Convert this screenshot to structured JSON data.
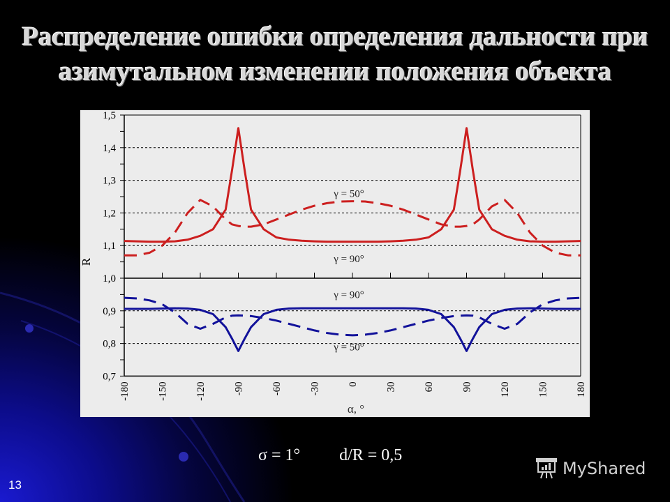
{
  "slide": {
    "title_line1": "Распределение ошибки определения дальности при",
    "title_line2": "азимутальном изменении положения объекта",
    "params": {
      "sigma": "σ = 1°",
      "ratio": "d/R = 0,5"
    },
    "page_number": "13",
    "brand": "MyShared",
    "colors": {
      "upper_series": "#cc1f1f",
      "lower_series": "#12129a",
      "panel_bg": "#ececec"
    }
  },
  "chart_data": {
    "type": "line",
    "title": "",
    "xlabel": "α, °",
    "ylabel": "R",
    "xlim": [
      -180,
      180
    ],
    "ylim": [
      0.7,
      1.5
    ],
    "x_ticks": [
      "-180",
      "-150",
      "-120",
      "-90",
      "-60",
      "-30",
      "0",
      "30",
      "60",
      "90",
      "120",
      "150",
      "180"
    ],
    "y_ticks": [
      "0,7",
      "0,8",
      "0,9",
      "1,0",
      "1,1",
      "1,2",
      "1,3",
      "1,4",
      "1,5"
    ],
    "grid": "horizontal dotted at 0.8, 0.9, 1.1, 1.2, 1.3, 1.4",
    "annotations": [
      {
        "text": "γ = 50°",
        "x": 0,
        "y": 1.26
      },
      {
        "text": "γ = 90°",
        "x": 0,
        "y": 1.06
      },
      {
        "text": "γ = 90°",
        "x": 0,
        "y": 0.95
      },
      {
        "text": "γ = 50°",
        "x": 0,
        "y": 0.79
      }
    ],
    "x": [
      -180,
      -170,
      -160,
      -150,
      -140,
      -130,
      -120,
      -110,
      -100,
      -95,
      -90,
      -85,
      -80,
      -70,
      -60,
      -50,
      -40,
      -30,
      -20,
      -10,
      0,
      10,
      20,
      30,
      40,
      50,
      60,
      70,
      80,
      85,
      90,
      95,
      100,
      110,
      120,
      130,
      140,
      150,
      160,
      170,
      180
    ],
    "series": [
      {
        "name": "upper γ = 90° (solid)",
        "style": "solid",
        "color": "#cc1f1f",
        "values": [
          1.114,
          1.113,
          1.112,
          1.112,
          1.113,
          1.118,
          1.13,
          1.15,
          1.21,
          1.33,
          1.46,
          1.33,
          1.21,
          1.15,
          1.125,
          1.118,
          1.115,
          1.113,
          1.112,
          1.112,
          1.112,
          1.112,
          1.112,
          1.113,
          1.115,
          1.118,
          1.125,
          1.15,
          1.21,
          1.33,
          1.46,
          1.33,
          1.21,
          1.15,
          1.13,
          1.118,
          1.113,
          1.112,
          1.112,
          1.113,
          1.114
        ]
      },
      {
        "name": "upper γ = 50° (dashed)",
        "style": "dashed",
        "color": "#cc1f1f",
        "values": [
          1.07,
          1.07,
          1.078,
          1.1,
          1.14,
          1.2,
          1.24,
          1.22,
          1.18,
          1.165,
          1.16,
          1.158,
          1.158,
          1.165,
          1.18,
          1.195,
          1.21,
          1.222,
          1.23,
          1.235,
          1.236,
          1.235,
          1.23,
          1.222,
          1.21,
          1.195,
          1.18,
          1.165,
          1.158,
          1.158,
          1.16,
          1.165,
          1.18,
          1.22,
          1.24,
          1.2,
          1.14,
          1.1,
          1.078,
          1.07,
          1.07
        ]
      },
      {
        "name": "lower γ = 90° (solid)",
        "style": "solid",
        "color": "#12129a",
        "values": [
          0.906,
          0.906,
          0.906,
          0.907,
          0.908,
          0.907,
          0.903,
          0.89,
          0.85,
          0.815,
          0.777,
          0.815,
          0.85,
          0.89,
          0.903,
          0.907,
          0.908,
          0.908,
          0.908,
          0.908,
          0.908,
          0.908,
          0.908,
          0.908,
          0.908,
          0.907,
          0.903,
          0.89,
          0.85,
          0.815,
          0.777,
          0.815,
          0.85,
          0.89,
          0.903,
          0.907,
          0.908,
          0.907,
          0.906,
          0.906,
          0.906
        ]
      },
      {
        "name": "lower γ = 50° (dashed)",
        "style": "dashed",
        "color": "#12129a",
        "values": [
          0.94,
          0.938,
          0.932,
          0.92,
          0.895,
          0.86,
          0.845,
          0.86,
          0.88,
          0.885,
          0.886,
          0.885,
          0.884,
          0.878,
          0.87,
          0.86,
          0.85,
          0.84,
          0.832,
          0.827,
          0.825,
          0.827,
          0.832,
          0.84,
          0.85,
          0.86,
          0.87,
          0.878,
          0.884,
          0.885,
          0.886,
          0.885,
          0.88,
          0.86,
          0.845,
          0.86,
          0.895,
          0.92,
          0.932,
          0.938,
          0.94
        ]
      }
    ]
  }
}
